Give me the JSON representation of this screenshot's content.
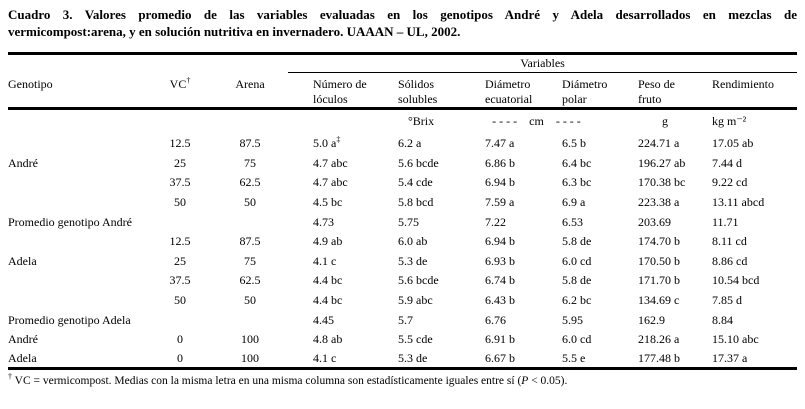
{
  "caption": {
    "line1": "Cuadro 3. Valores promedio de las variables evaluadas en los genotipos André y Adela desarrollados en mezclas de",
    "line2": "vermicompost:arena, y en solución nutritiva en invernadero. UAAAN – UL, 2002."
  },
  "table": {
    "variables_label": "Variables",
    "headers": {
      "genotipo": "Genotipo",
      "vc": "VC",
      "vc_sup": "†",
      "arena": "Arena",
      "loculos": [
        "Número de",
        "lóculos"
      ],
      "solidos": [
        "Sólidos",
        "solubles"
      ],
      "diametro_ecuatorial": [
        "Diámetro",
        "ecuatorial"
      ],
      "diametro_polar": [
        "Diámetro",
        "polar"
      ],
      "peso": [
        "Peso de",
        "fruto"
      ],
      "rendimiento": [
        "Rendimiento"
      ]
    },
    "units": {
      "solidos": "°Brix",
      "diametros": "- - - -    cm    - - - -",
      "peso": "g",
      "rendimiento": "kg m⁻²"
    },
    "rows": [
      [
        "",
        "12.5",
        "87.5",
        "5.0 a‡",
        "6.2 a",
        "7.47 a",
        "6.5 b",
        "224.71 a",
        "17.05 ab"
      ],
      [
        "André",
        "25",
        "75",
        "4.7 abc",
        "5.6 bcde",
        "6.86 b",
        "6.4 bc",
        "196.27 ab",
        "7.44 d"
      ],
      [
        "",
        "37.5",
        "62.5",
        "4.7 abc",
        "5.4 cde",
        "6.94 b",
        "6.3 bc",
        "170.38 bc",
        "9.22 cd"
      ],
      [
        "",
        "50",
        "50",
        "4.5 bc",
        "5.8 bcd",
        "7.59 a",
        "6.9 a",
        "223.38 a",
        "13.11 abcd"
      ],
      [
        "Promedio genotipo André",
        "",
        "",
        "4.73",
        "5.75",
        "7.22",
        "6.53",
        "203.69",
        "11.71"
      ],
      [
        "",
        "12.5",
        "87.5",
        "4.9 ab",
        "6.0 ab",
        "6.94 b",
        "5.8 de",
        "174.70 b",
        "8.11 cd"
      ],
      [
        "Adela",
        "25",
        "75",
        "4.1 c",
        "5.3 de",
        "6.93 b",
        "6.0 cd",
        "170.50 b",
        "8.86 cd"
      ],
      [
        "",
        "37.5",
        "62.5",
        "4.4 bc",
        "5.6 bcde",
        "6.74 b",
        "5.8 de",
        "171.70 b",
        "10.54 bcd"
      ],
      [
        "",
        "50",
        "50",
        "4.4 bc",
        "5.9 abc",
        "6.43 b",
        "6.2 bc",
        "134.69 c",
        "7.85 d"
      ],
      [
        "Promedio genotipo Adela",
        "",
        "",
        "4.45",
        "5.7",
        "6.76",
        "5.95",
        "162.9",
        "8.84"
      ],
      [
        "André",
        "0",
        "100",
        "4.8 ab",
        "5.5 cde",
        "6.91 b",
        "6.0 cd",
        "218.26 a",
        "15.10 abc"
      ],
      [
        "Adela",
        "0",
        "100",
        "4.1 c",
        "5.3 de",
        "6.67 b",
        "5.5 e",
        "177.48 b",
        "17.37 a"
      ]
    ]
  },
  "footnote": {
    "sup": "†",
    "text1": " VC = vermicompost. Medias con la misma letra en una misma columna son estadísticamente iguales entre sí (",
    "p_italic": "P",
    "text2": " < 0.05)."
  }
}
